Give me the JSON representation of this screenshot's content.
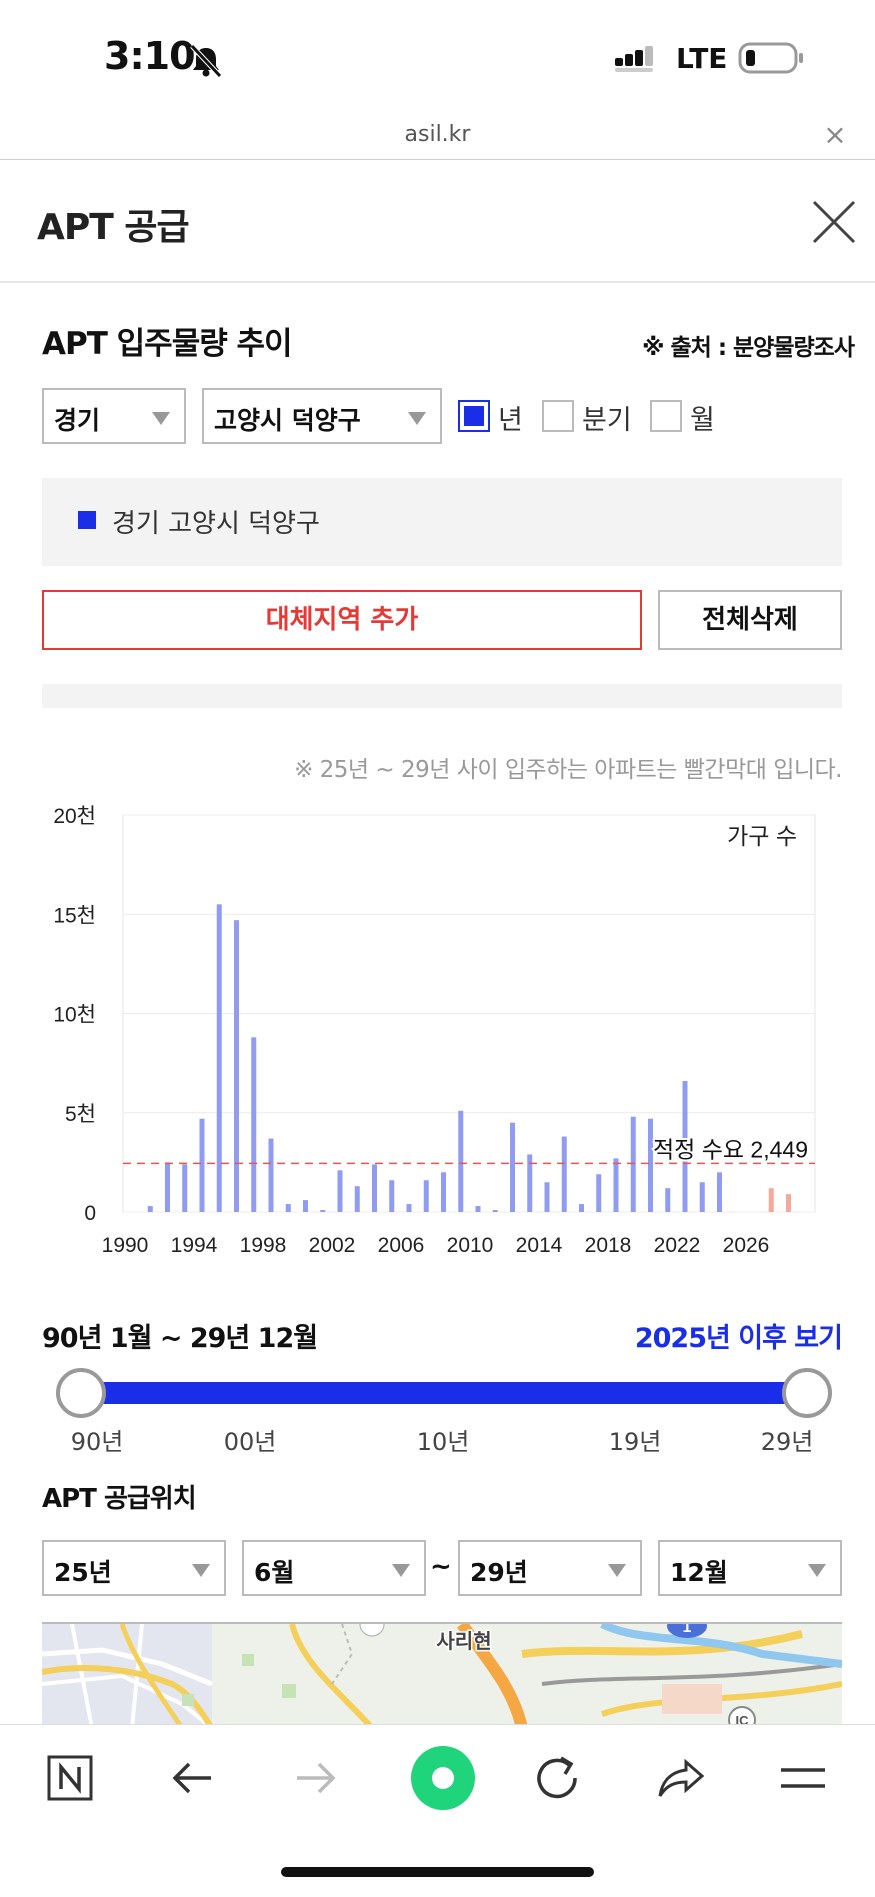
{
  "status_bar": {
    "time": "3:10",
    "network": "LTE"
  },
  "browser": {
    "url": "asil.kr",
    "close_glyph": "×"
  },
  "header": {
    "title": "APT 공급"
  },
  "section": {
    "title": "APT 입주물량 추이",
    "source": "※ 출처 : 분양물량조사"
  },
  "filters": {
    "province": "경기",
    "district": "고양시 덕양구",
    "periods": [
      {
        "label": "년",
        "checked": true
      },
      {
        "label": "분기",
        "checked": false
      },
      {
        "label": "월",
        "checked": false
      }
    ]
  },
  "legend": {
    "label": "경기 고양시 덕양구"
  },
  "buttons": {
    "add_region": "대체지역 추가",
    "delete_all": "전체삭제"
  },
  "chart_note": "※ 25년 ~ 29년 사이 입주하는 아파트는 빨간막대 입니다.",
  "chart_data": {
    "type": "bar",
    "unit_label": "가구 수",
    "y_ticks": [
      "20천",
      "15천",
      "10천",
      "5천",
      "0"
    ],
    "x_ticks": [
      "1990",
      "1994",
      "1998",
      "2002",
      "2006",
      "2010",
      "2014",
      "2018",
      "2022",
      "2026"
    ],
    "ylim": [
      0,
      20000
    ],
    "reference_line": {
      "label": "적정 수요 2,449",
      "value": 2449,
      "color": "#ef5350"
    },
    "colors": {
      "past": "#8f9cf2",
      "future": "#f4a99a"
    },
    "x": [
      1991,
      1992,
      1993,
      1994,
      1995,
      1996,
      1997,
      1998,
      1999,
      2000,
      2001,
      2002,
      2003,
      2004,
      2005,
      2006,
      2007,
      2008,
      2009,
      2010,
      2011,
      2012,
      2013,
      2014,
      2015,
      2016,
      2017,
      2018,
      2019,
      2020,
      2021,
      2022,
      2023,
      2024,
      2027,
      2028
    ],
    "values": [
      300,
      2500,
      2400,
      4700,
      15500,
      14700,
      8800,
      3700,
      400,
      600,
      100,
      2100,
      1300,
      2400,
      1600,
      400,
      1600,
      2000,
      5100,
      300,
      100,
      4500,
      2900,
      1500,
      3800,
      400,
      1900,
      2700,
      4800,
      4700,
      1200,
      6600,
      1500,
      2000,
      1200,
      900
    ],
    "future_from": 2025,
    "grid": true
  },
  "range": {
    "label": "90년 1월 ~ 29년 12월",
    "after_link": "2025년 이후 보기",
    "ticks": [
      "90년",
      "00년",
      "10년",
      "19년",
      "29년"
    ]
  },
  "location": {
    "title": "APT 공급위치",
    "from_year": "25년",
    "from_month": "6월",
    "separator": "~",
    "to_year": "29년",
    "to_month": "12월",
    "map_label": "사리현",
    "map_badge": "1",
    "map_ic": "IC"
  }
}
